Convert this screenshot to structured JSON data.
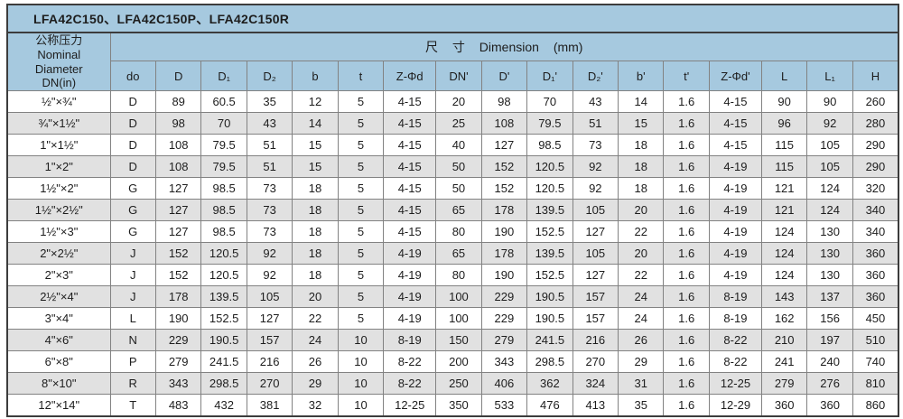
{
  "title": "LFA42C150、LFA42C150P、LFA42C150R",
  "colors": {
    "header_blue": "#a6c9df",
    "stripe_gray": "#e1e1e1",
    "cell_border": "#828282",
    "outer_border": "#3c3c3c",
    "text": "#1d1d1d"
  },
  "table": {
    "corner_header": "公称压力\nNominal\nDiameter\nDN(in)",
    "dimension_header": "尺 寸 Dimension (mm)",
    "columns": [
      "do",
      "D",
      "D₁",
      "D₂",
      "b",
      "t",
      "Z-Φd",
      "DN'",
      "D'",
      "D₁'",
      "D₂'",
      "b'",
      "t'",
      "Z-Φd'",
      "L",
      "L₁",
      "H"
    ],
    "rows": [
      [
        "½\"×¾\"",
        "D",
        "89",
        "60.5",
        "35",
        "12",
        "5",
        "4-15",
        "20",
        "98",
        "70",
        "43",
        "14",
        "1.6",
        "4-15",
        "90",
        "90",
        "260"
      ],
      [
        "¾\"×1½\"",
        "D",
        "98",
        "70",
        "43",
        "14",
        "5",
        "4-15",
        "25",
        "108",
        "79.5",
        "51",
        "15",
        "1.6",
        "4-15",
        "96",
        "92",
        "280"
      ],
      [
        "1\"×1½\"",
        "D",
        "108",
        "79.5",
        "51",
        "15",
        "5",
        "4-15",
        "40",
        "127",
        "98.5",
        "73",
        "18",
        "1.6",
        "4-15",
        "115",
        "105",
        "290"
      ],
      [
        "1\"×2\"",
        "D",
        "108",
        "79.5",
        "51",
        "15",
        "5",
        "4-15",
        "50",
        "152",
        "120.5",
        "92",
        "18",
        "1.6",
        "4-19",
        "115",
        "105",
        "290"
      ],
      [
        "1½\"×2\"",
        "G",
        "127",
        "98.5",
        "73",
        "18",
        "5",
        "4-15",
        "50",
        "152",
        "120.5",
        "92",
        "18",
        "1.6",
        "4-19",
        "121",
        "124",
        "320"
      ],
      [
        "1½\"×2½\"",
        "G",
        "127",
        "98.5",
        "73",
        "18",
        "5",
        "4-15",
        "65",
        "178",
        "139.5",
        "105",
        "20",
        "1.6",
        "4-19",
        "121",
        "124",
        "340"
      ],
      [
        "1½\"×3\"",
        "G",
        "127",
        "98.5",
        "73",
        "18",
        "5",
        "4-15",
        "80",
        "190",
        "152.5",
        "127",
        "22",
        "1.6",
        "4-19",
        "124",
        "130",
        "340"
      ],
      [
        "2\"×2½\"",
        "J",
        "152",
        "120.5",
        "92",
        "18",
        "5",
        "4-19",
        "65",
        "178",
        "139.5",
        "105",
        "20",
        "1.6",
        "4-19",
        "124",
        "130",
        "360"
      ],
      [
        "2\"×3\"",
        "J",
        "152",
        "120.5",
        "92",
        "18",
        "5",
        "4-19",
        "80",
        "190",
        "152.5",
        "127",
        "22",
        "1.6",
        "4-19",
        "124",
        "130",
        "360"
      ],
      [
        "2½\"×4\"",
        "J",
        "178",
        "139.5",
        "105",
        "20",
        "5",
        "4-19",
        "100",
        "229",
        "190.5",
        "157",
        "24",
        "1.6",
        "8-19",
        "143",
        "137",
        "360"
      ],
      [
        "3\"×4\"",
        "L",
        "190",
        "152.5",
        "127",
        "22",
        "5",
        "4-19",
        "100",
        "229",
        "190.5",
        "157",
        "24",
        "1.6",
        "8-19",
        "162",
        "156",
        "450"
      ],
      [
        "4\"×6\"",
        "N",
        "229",
        "190.5",
        "157",
        "24",
        "10",
        "8-19",
        "150",
        "279",
        "241.5",
        "216",
        "26",
        "1.6",
        "8-22",
        "210",
        "197",
        "510"
      ],
      [
        "6\"×8\"",
        "P",
        "279",
        "241.5",
        "216",
        "26",
        "10",
        "8-22",
        "200",
        "343",
        "298.5",
        "270",
        "29",
        "1.6",
        "8-22",
        "241",
        "240",
        "740"
      ],
      [
        "8\"×10\"",
        "R",
        "343",
        "298.5",
        "270",
        "29",
        "10",
        "8-22",
        "250",
        "406",
        "362",
        "324",
        "31",
        "1.6",
        "12-25",
        "279",
        "276",
        "810"
      ],
      [
        "12\"×14\"",
        "T",
        "483",
        "432",
        "381",
        "32",
        "10",
        "12-25",
        "350",
        "533",
        "476",
        "413",
        "35",
        "1.6",
        "12-29",
        "360",
        "360",
        "860"
      ]
    ]
  }
}
